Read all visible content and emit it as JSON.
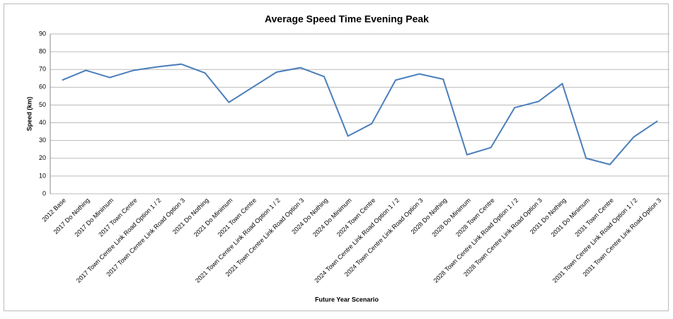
{
  "chart_data": {
    "type": "line",
    "title": "Average Speed Time Evening Peak",
    "x_label": "Future Year Scenario",
    "y_label": "Speed (km)",
    "categories": [
      "2012 Base",
      "2017 Do Nothing",
      "2017 Do Minimum",
      "2017 Town Centre",
      "2017 Town Centre Link Road Option 1 / 2",
      "2017 Town Centre Link Road Option 3",
      "2021 Do Nothing",
      "2021 Do Minimum",
      "2021 Town Centre",
      "2021 Town Centre Link Road Option 1 / 2",
      "2021 Town Centre Link Road Option 3",
      "2024 Do Nothing",
      "2024 Do Minimum",
      "2024 Town Centre",
      "2024 Town Centre Link Road Option 1 / 2",
      "2024 Town Centre Link Road Option 3",
      "2028 Do Nothing",
      "2028 Do Minimum",
      "2028 Town Centre",
      "2028 Town Centre Link Road Option 1 / 2",
      "2028 Town Centre Link Road Option 3",
      "2031 Do Nothing",
      "2031 Do Minimum",
      "2031 Town Centre",
      "2031 Town Centre Link Road Option 1 / 2",
      "2031 Town Centre Link Road Option 3"
    ],
    "values": [
      64,
      69.5,
      65.5,
      69.5,
      71.5,
      73,
      68,
      51.5,
      60,
      68.5,
      71,
      66,
      32.5,
      39.5,
      64,
      67.5,
      64.5,
      22,
      26,
      48.5,
      52,
      62,
      20,
      16.5,
      32,
      41
    ],
    "color": "#4a7ebb",
    "ylim": [
      0,
      90
    ],
    "yticks": [
      0,
      10,
      20,
      30,
      40,
      50,
      60,
      70,
      80,
      90
    ],
    "grid": true
  }
}
